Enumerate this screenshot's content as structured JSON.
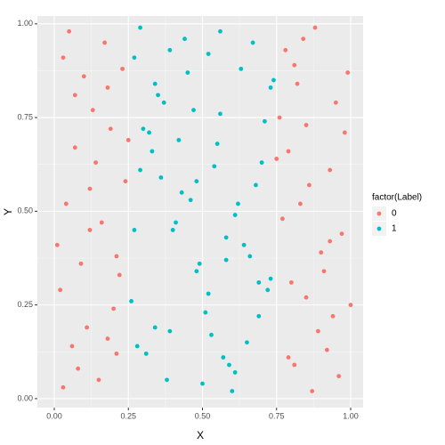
{
  "chart_data": {
    "type": "scatter",
    "x_label": "X",
    "y_label": "Y",
    "legend_title": "factor(Label)",
    "xlim": [
      -0.057,
      1.042
    ],
    "ylim": [
      -0.024,
      1.021
    ],
    "xticks": [
      {
        "value": 0,
        "label": "0.00"
      },
      {
        "value": 0.25,
        "label": "0.25"
      },
      {
        "value": 0.5,
        "label": "0.50"
      },
      {
        "value": 0.75,
        "label": "0.75"
      },
      {
        "value": 1,
        "label": "1.00"
      }
    ],
    "yticks": [
      {
        "value": 0,
        "label": "0.00"
      },
      {
        "value": 0.25,
        "label": "0.25"
      },
      {
        "value": 0.5,
        "label": "0.50"
      },
      {
        "value": 0.75,
        "label": "0.75"
      },
      {
        "value": 1,
        "label": "1.00"
      }
    ],
    "grid": true,
    "legend": "right",
    "series": [
      {
        "name": "0",
        "color": "#F8766D",
        "x": [
          0.03,
          0.12,
          0.21,
          0.07,
          0.18,
          0.02,
          0.15,
          0.24,
          0.09,
          0.05,
          0.19,
          0.11,
          0.23,
          0.01,
          0.14,
          0.08,
          0.17,
          0.22,
          0.04,
          0.13,
          0.2,
          0.06,
          0.1,
          0.16,
          0.25,
          0.03,
          0.12,
          0.21,
          0.07,
          0.18,
          0.78,
          0.85,
          0.93,
          0.81,
          0.97,
          0.76,
          0.89,
          0.99,
          0.83,
          0.91,
          0.79,
          0.87,
          0.95,
          0.77,
          0.84,
          0.92,
          0.8,
          0.98,
          0.86,
          0.94,
          0.82,
          0.9,
          0.96,
          0.75,
          0.88,
          1.0,
          0.79,
          0.85,
          0.93,
          0.81
        ],
        "values": [
          0.91,
          0.45,
          0.12,
          0.67,
          0.83,
          0.29,
          0.05,
          0.58,
          0.36,
          0.98,
          0.72,
          0.19,
          0.88,
          0.41,
          0.63,
          0.08,
          0.95,
          0.33,
          0.52,
          0.77,
          0.24,
          0.14,
          0.86,
          0.47,
          0.69,
          0.03,
          0.56,
          0.38,
          0.81,
          0.16,
          0.93,
          0.27,
          0.61,
          0.09,
          0.44,
          0.75,
          0.18,
          0.87,
          0.52,
          0.34,
          0.66,
          0.02,
          0.79,
          0.48,
          0.96,
          0.13,
          0.31,
          0.71,
          0.57,
          0.22,
          0.84,
          0.39,
          0.06,
          0.64,
          0.99,
          0.25,
          0.11,
          0.73,
          0.42,
          0.89
        ]
      },
      {
        "name": "1",
        "color": "#00BFC4",
        "x": [
          0.31,
          0.45,
          0.58,
          0.67,
          0.29,
          0.52,
          0.71,
          0.38,
          0.62,
          0.27,
          0.49,
          0.55,
          0.34,
          0.73,
          0.41,
          0.6,
          0.36,
          0.69,
          0.47,
          0.28,
          0.56,
          0.64,
          0.33,
          0.51,
          0.74,
          0.43,
          0.59,
          0.3,
          0.66,
          0.39,
          0.53,
          0.7,
          0.35,
          0.48,
          0.61,
          0.26,
          0.44,
          0.57,
          0.68,
          0.32,
          0.5,
          0.63,
          0.4,
          0.72,
          0.37,
          0.54,
          0.65,
          0.46,
          0.29,
          0.58,
          0.42,
          0.69,
          0.34,
          0.61,
          0.48,
          0.27,
          0.56,
          0.73,
          0.39,
          0.52
        ],
        "values": [
          0.12,
          0.87,
          0.43,
          0.95,
          0.61,
          0.28,
          0.74,
          0.05,
          0.52,
          0.91,
          0.36,
          0.68,
          0.19,
          0.83,
          0.47,
          0.02,
          0.59,
          0.31,
          0.77,
          0.14,
          0.98,
          0.41,
          0.66,
          0.23,
          0.85,
          0.55,
          0.09,
          0.72,
          0.38,
          0.93,
          0.17,
          0.63,
          0.81,
          0.34,
          0.49,
          0.26,
          0.96,
          0.11,
          0.57,
          0.71,
          0.04,
          0.88,
          0.45,
          0.29,
          0.79,
          0.62,
          0.15,
          0.53,
          0.99,
          0.37,
          0.69,
          0.22,
          0.84,
          0.07,
          0.58,
          0.45,
          0.76,
          0.32,
          0.18,
          0.92
        ]
      }
    ]
  }
}
